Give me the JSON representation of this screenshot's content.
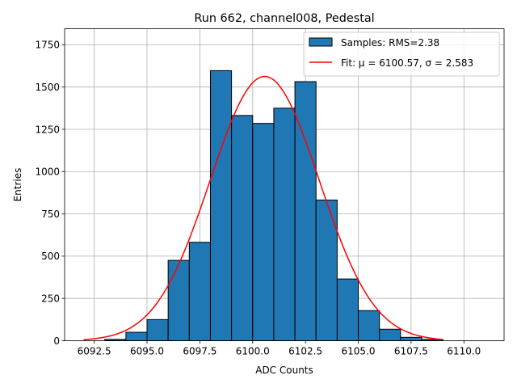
{
  "chart_data": {
    "type": "bar",
    "title": "Run 662, channel008, Pedestal",
    "xlabel": "ADC Counts",
    "ylabel": "Entries",
    "xlim": [
      6091.1,
      6111.9
    ],
    "ylim": [
      0,
      1845
    ],
    "xticks": [
      6092.5,
      6095.0,
      6097.5,
      6100.0,
      6102.5,
      6105.0,
      6107.5,
      6110.0
    ],
    "xtick_labels": [
      "6092.5",
      "6095.0",
      "6097.5",
      "6100.0",
      "6102.5",
      "6105.0",
      "6107.5",
      "6110.0"
    ],
    "yticks": [
      0,
      250,
      500,
      750,
      1000,
      1250,
      1500,
      1750
    ],
    "ytick_labels": [
      "0",
      "250",
      "500",
      "750",
      "1000",
      "1250",
      "1500",
      "1750"
    ],
    "grid": true,
    "legend_position": "top-right",
    "bar_color": "#1f77b4",
    "fit_color": "#ff0000",
    "bins": {
      "edges": [
        6093,
        6094,
        6095,
        6096,
        6097,
        6098,
        6099,
        6100,
        6101,
        6102,
        6103,
        6104,
        6105,
        6106,
        6107,
        6108,
        6109
      ],
      "counts": [
        8,
        50,
        125,
        475,
        582,
        1597,
        1332,
        1285,
        1375,
        1532,
        832,
        365,
        178,
        68,
        20,
        8
      ]
    },
    "fit": {
      "mu": 6100.57,
      "sigma": 2.583,
      "amplitude": 1563,
      "x_range": [
        6092.0,
        6109.0
      ]
    },
    "series": [
      {
        "name": "Samples: RMS=2.38",
        "kind": "histogram"
      },
      {
        "name": "Fit: μ = 6100.57, σ = 2.583",
        "kind": "line"
      }
    ]
  }
}
